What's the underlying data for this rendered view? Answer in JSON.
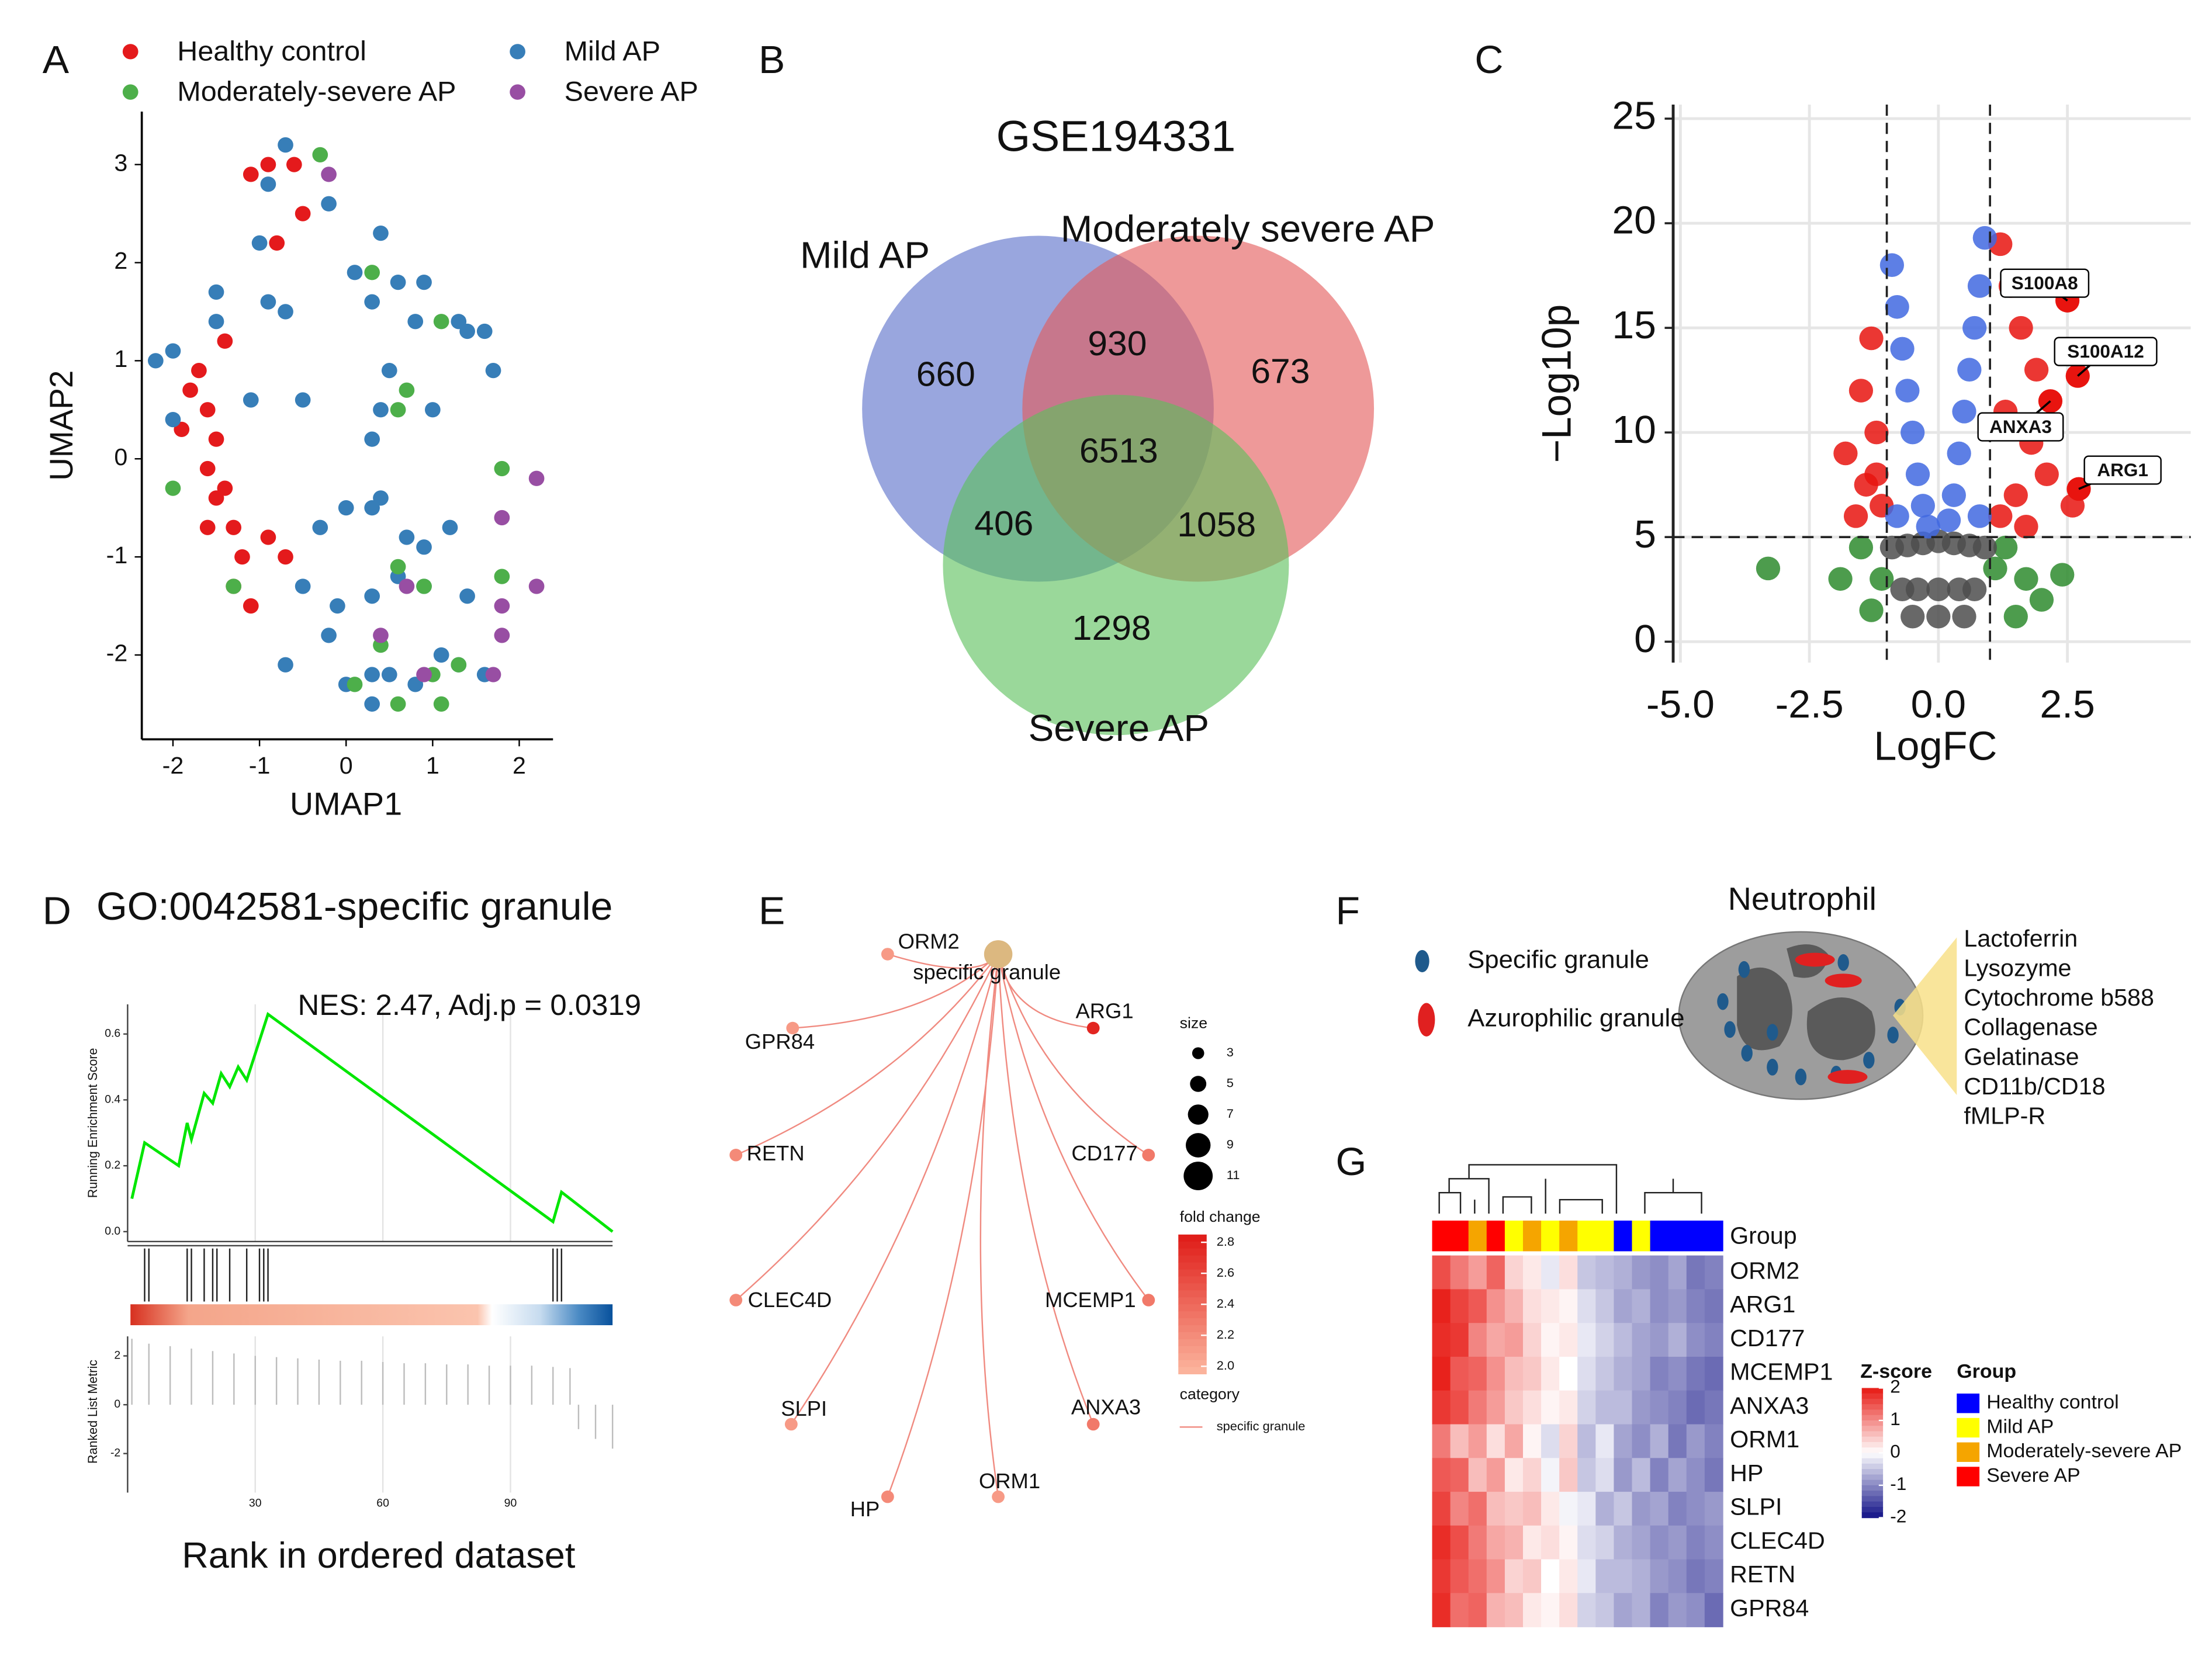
{
  "panels": [
    "A",
    "B",
    "C",
    "D",
    "E",
    "F",
    "G"
  ],
  "chart_data": [
    {
      "type": "scatter",
      "xlabel": "UMAP1",
      "ylabel": "UMAP2",
      "xlim": [
        -2.36,
        2.39
      ],
      "ylim": [
        -2.86,
        3.54
      ],
      "xticks": [
        -2,
        -1,
        0,
        1,
        2
      ],
      "yticks": [
        -2,
        -1,
        0,
        1,
        2,
        3
      ],
      "series": [
        {
          "name": "Healthy control",
          "color": "#e41a1c",
          "x": [
            -0.9,
            -1.1,
            -0.6,
            -0.5,
            -0.8,
            -1.4,
            -1.7,
            -1.8,
            -1.6,
            -1.9,
            -1.5,
            -1.6,
            -1.5,
            -1.3,
            -1.6,
            -1.2,
            -0.9,
            -1.1,
            -1.3,
            -0.7,
            -1.4
          ],
          "y": [
            3.0,
            2.9,
            3.0,
            2.5,
            2.2,
            1.2,
            0.9,
            0.7,
            0.5,
            0.3,
            0.2,
            -0.1,
            -0.4,
            -0.7,
            -0.7,
            -1.0,
            -0.8,
            -1.5,
            -1.3,
            -1.0,
            -0.3
          ]
        },
        {
          "name": "Mild AP",
          "color": "#377eb8",
          "x": [
            -0.7,
            -0.9,
            -0.2,
            -1.0,
            -1.5,
            -1.5,
            -0.7,
            -0.9,
            -2.2,
            -2.0,
            -2.0,
            -1.1,
            -0.5,
            0.1,
            0.4,
            0.6,
            0.3,
            0.9,
            0.8,
            1.3,
            1.4,
            1.6,
            1.7,
            0.5,
            0.4,
            1.0,
            0.3,
            0.4,
            0.3,
            0.0,
            -0.3,
            0.7,
            0.9,
            1.2,
            0.6,
            0.9,
            0.3,
            -0.1,
            -0.2,
            0.3,
            0.5,
            0.0,
            0.3,
            0.8,
            1.1,
            1.3,
            1.4,
            1.6,
            -0.7,
            -0.5
          ],
          "y": [
            3.2,
            2.8,
            2.6,
            2.2,
            1.7,
            1.4,
            1.5,
            1.6,
            1.0,
            1.1,
            0.4,
            0.6,
            0.6,
            1.9,
            2.3,
            1.8,
            1.6,
            1.8,
            1.4,
            1.4,
            1.3,
            1.3,
            0.9,
            0.9,
            0.5,
            0.5,
            0.2,
            -0.4,
            -0.5,
            -0.5,
            -0.7,
            -0.8,
            -0.9,
            -0.7,
            -1.2,
            -1.3,
            -1.4,
            -1.5,
            -1.8,
            -2.2,
            -2.2,
            -2.3,
            -2.5,
            -2.3,
            -2.0,
            -2.1,
            -1.4,
            -2.2,
            -2.1,
            -1.3
          ]
        },
        {
          "name": "Moderately-severe AP",
          "color": "#4daf4a",
          "x": [
            -0.3,
            0.3,
            1.1,
            0.7,
            0.6,
            1.8,
            -2.0,
            0.6,
            0.9,
            1.8,
            -1.3,
            0.4,
            0.6,
            1.0,
            1.3,
            0.1,
            1.1
          ],
          "y": [
            3.1,
            1.9,
            1.4,
            0.7,
            0.5,
            -0.1,
            -0.3,
            -1.1,
            -1.3,
            -1.2,
            -1.3,
            -1.9,
            -2.5,
            -2.2,
            -2.1,
            -2.3,
            -2.5
          ]
        },
        {
          "name": "Severe AP",
          "color": "#984ea3",
          "x": [
            -0.2,
            2.2,
            1.8,
            1.8,
            2.2,
            1.8,
            1.7,
            0.4,
            0.9,
            0.7
          ],
          "y": [
            2.9,
            -0.2,
            -0.6,
            -1.5,
            -1.3,
            -1.8,
            -2.2,
            -1.8,
            -2.2,
            -1.3
          ]
        }
      ]
    },
    {
      "type": "venn",
      "title": "GSE194331",
      "sets": [
        {
          "name": "Mild AP",
          "color": "#5b6fca"
        },
        {
          "name": "Moderately severe AP",
          "color": "#e35b5b"
        },
        {
          "name": "Severe AP",
          "color": "#5cc05c"
        }
      ],
      "regions": {
        "mild": 660,
        "moderately_severe": 673,
        "severe": 1298,
        "mild_moderately_severe": 930,
        "mild_severe": 406,
        "moderately_severe_severe": 1058,
        "all": 6513
      }
    },
    {
      "type": "volcano",
      "xlabel": "LogFC",
      "ylabel": "−Log10p",
      "xlim": [
        -5.14,
        4.89
      ],
      "ylim": [
        -1,
        25.67
      ],
      "xticks": [
        {
          "value": -5,
          "label": "-5.0"
        },
        {
          "value": -2.5,
          "label": "-2.5"
        },
        {
          "value": 0,
          "label": "0.0"
        },
        {
          "value": 2.5,
          "label": "2.5"
        }
      ],
      "yticks": [
        0,
        5,
        10,
        15,
        20,
        25
      ],
      "thresholds": {
        "x": [
          -1,
          1
        ],
        "y": 5
      },
      "grid": true,
      "series": [
        {
          "color": "#2e8b2e",
          "x": [
            -1.5,
            -1.9,
            -1.3,
            -3.3,
            1.3,
            1.7,
            2.0,
            2.4,
            1.5,
            -1.1,
            1.1
          ],
          "y": [
            4.5,
            3,
            1.5,
            3.5,
            4.5,
            3,
            2,
            3.2,
            1.2,
            3,
            3.5
          ]
        },
        {
          "color": "#4d4d4d",
          "x": [
            -0.9,
            -0.6,
            -0.3,
            0,
            0.3,
            0.6,
            0.9,
            -0.7,
            -0.4,
            0,
            0.4,
            0.7,
            -0.5,
            0,
            0.5
          ],
          "y": [
            4.5,
            4.6,
            4.7,
            4.8,
            4.7,
            4.6,
            4.5,
            2.5,
            2.5,
            2.5,
            2.5,
            2.5,
            1.2,
            1.2,
            1.2
          ]
        },
        {
          "color": "#e8140f",
          "x": [
            -1.3,
            -1.5,
            -1.2,
            -1.8,
            -1.4,
            -1.1,
            -1.6,
            -1.2,
            1.2,
            1.4,
            1.6,
            1.9,
            1.3,
            1.8,
            2.1,
            1.5,
            1.2,
            2.6,
            1.7
          ],
          "y": [
            14.5,
            12,
            10,
            9,
            7.5,
            6.5,
            6,
            8,
            19,
            17,
            15,
            13,
            11,
            9.5,
            8,
            7,
            6,
            6.5,
            5.5
          ]
        },
        {
          "color": "#4169e1",
          "x": [
            -0.9,
            -0.8,
            -0.7,
            -0.6,
            -0.5,
            -0.4,
            -0.8,
            -0.3,
            0.9,
            0.8,
            0.7,
            0.6,
            0.5,
            0.4,
            0.8,
            0.3,
            -0.2,
            0.2
          ],
          "y": [
            18,
            16,
            14,
            12,
            10,
            8,
            6,
            6.5,
            19.3,
            17,
            15,
            13,
            11,
            9,
            6,
            7,
            5.5,
            5.8
          ]
        }
      ],
      "labels": [
        {
          "gene": "S100A8",
          "x": 2.5,
          "y": 16.3
        },
        {
          "gene": "S100A12",
          "x": 2.7,
          "y": 12.7
        },
        {
          "gene": "ANXA3",
          "x": 2.17,
          "y": 11.5
        },
        {
          "gene": "ARG1",
          "x": 2.72,
          "y": 7.3
        }
      ]
    },
    {
      "type": "gsea",
      "title": "GO:0042581-specific granule",
      "annotation": "NES: 2.47, Adj.p = 0.0319",
      "xlabel": "Rank in ordered dataset",
      "ylabel": "Running Enrichment Score",
      "metric_label": "Ranked List Metric",
      "color": "#00e600",
      "xlim": [
        0,
        114
      ],
      "xticks": [
        30,
        60,
        90
      ],
      "ylim": [
        -0.03,
        0.69
      ],
      "yticks": [
        {
          "value": 0,
          "label": "0.0"
        },
        0.2,
        0.4,
        0.6
      ],
      "x": [
        1,
        4,
        12,
        14,
        15,
        18,
        20,
        22,
        24,
        26,
        28,
        33,
        100,
        102,
        114
      ],
      "y": [
        0.1,
        0.27,
        0.2,
        0.33,
        0.28,
        0.42,
        0.39,
        0.48,
        0.44,
        0.5,
        0.46,
        0.66,
        0.03,
        0.12,
        0.0
      ],
      "hits": [
        4,
        5,
        14,
        15,
        18,
        20,
        21,
        24,
        28,
        31,
        32,
        33,
        100,
        101,
        102
      ],
      "metric_ylim": [
        -3.6,
        2.8
      ],
      "metric_yticks": [
        -2,
        0,
        2
      ],
      "metric_x": [
        1,
        5,
        10,
        15,
        20,
        25,
        30,
        35,
        40,
        45,
        50,
        55,
        60,
        65,
        70,
        75,
        80,
        85,
        90,
        95,
        100,
        104,
        106,
        110,
        114
      ],
      "metric": [
        2.7,
        2.5,
        2.4,
        2.3,
        2.2,
        2.1,
        2.0,
        1.95,
        1.9,
        1.85,
        1.8,
        1.8,
        1.75,
        1.7,
        1.7,
        1.65,
        1.65,
        1.6,
        1.6,
        1.6,
        1.55,
        1.5,
        -1.0,
        -1.4,
        -1.8
      ]
    },
    {
      "type": "network",
      "center": {
        "label": "specific granule",
        "size": 11,
        "color": "#dcb880"
      },
      "nodes": [
        {
          "label": "ORM2",
          "fold_change": 2.1
        },
        {
          "label": "GPR84",
          "fold_change": 2.1
        },
        {
          "label": "RETN",
          "fold_change": 2.2
        },
        {
          "label": "CLEC4D",
          "fold_change": 2.2
        },
        {
          "label": "SLPI",
          "fold_change": 2.1
        },
        {
          "label": "HP",
          "fold_change": 2.2
        },
        {
          "label": "ORM1",
          "fold_change": 2.1
        },
        {
          "label": "ANXA3",
          "fold_change": 2.3
        },
        {
          "label": "MCEMP1",
          "fold_change": 2.3
        },
        {
          "label": "CD177",
          "fold_change": 2.3
        },
        {
          "label": "ARG1",
          "fold_change": 2.8
        }
      ],
      "node_size": 3,
      "edge_color": "#f08a80",
      "size_title": "size",
      "size_ticks": [
        3,
        5,
        7,
        9,
        11
      ],
      "color_title": "fold change",
      "color_lim": [
        1.95,
        2.85
      ],
      "low_color": "#fbb39c",
      "high_color": "#e01e1a",
      "color_ticks": [
        {
          "value": 2,
          "label": "2.0"
        },
        2.2,
        2.4,
        2.6,
        2.8
      ],
      "category_title": "category",
      "category": "specific granule"
    },
    {
      "type": "heatmap",
      "rows": [
        "ORM2",
        "ARG1",
        "CD177",
        "MCEMP1",
        "ANXA3",
        "ORM1",
        "HP",
        "SLPI",
        "CLEC4D",
        "RETN",
        "GPR84"
      ],
      "group_title": "Group",
      "groups": [
        {
          "name": "Healthy control",
          "color": "#0000ff"
        },
        {
          "name": "Mild AP",
          "color": "#ffff00"
        },
        {
          "name": "Moderately-severe AP",
          "color": "#f5a500"
        },
        {
          "name": "Severe AP",
          "color": "#ff0000"
        }
      ],
      "column_groups": [
        3,
        3,
        2,
        3,
        1,
        2,
        1,
        2,
        1,
        1,
        0,
        1,
        0,
        0,
        0,
        0
      ],
      "values": [
        [
          1.6,
          1.2,
          0.9,
          1.4,
          0.4,
          0.2,
          -0.2,
          0.3,
          -0.5,
          -0.6,
          -0.7,
          -0.9,
          -1.0,
          -0.8,
          -1.2,
          -1.1
        ],
        [
          2,
          1.7,
          1.5,
          1.0,
          0.7,
          0.3,
          0.2,
          0.1,
          -0.3,
          -0.5,
          -0.8,
          -0.7,
          -1.0,
          -0.9,
          -1.1,
          -1.2
        ],
        [
          1.9,
          1.8,
          1.1,
          0.8,
          0.9,
          0.4,
          0.1,
          0.2,
          -0.2,
          -0.4,
          -0.6,
          -0.8,
          -0.9,
          -0.7,
          -1.0,
          -1.1
        ],
        [
          2,
          1.5,
          1.4,
          1.0,
          0.6,
          0.5,
          0.2,
          0.0,
          -0.3,
          -0.5,
          -0.7,
          -0.8,
          -1.1,
          -1.0,
          -1.2,
          -1.3
        ],
        [
          1.8,
          1.6,
          1.2,
          0.9,
          0.5,
          0.3,
          0.1,
          0.2,
          -0.4,
          -0.6,
          -0.6,
          -0.9,
          -1.0,
          -1.1,
          -1.3,
          -1.2
        ],
        [
          1.2,
          0.6,
          0.9,
          0.3,
          0.8,
          0.1,
          -0.3,
          0.4,
          -0.6,
          -0.2,
          -0.8,
          -1.0,
          -0.7,
          -1.2,
          -0.9,
          -1.1
        ],
        [
          1.5,
          1.4,
          0.6,
          0.9,
          0.2,
          0.4,
          -0.1,
          0.5,
          -0.5,
          -0.3,
          -0.9,
          -0.6,
          -1.1,
          -0.8,
          -1.0,
          -1.2
        ],
        [
          1.7,
          1.1,
          1.3,
          0.6,
          0.5,
          0.6,
          0.2,
          -0.1,
          -0.2,
          -0.7,
          -0.5,
          -0.9,
          -0.8,
          -1.1,
          -1.0,
          -0.9
        ],
        [
          1.9,
          1.6,
          1.2,
          0.8,
          0.7,
          0.2,
          0.3,
          0.1,
          -0.3,
          -0.4,
          -0.7,
          -0.8,
          -1.0,
          -0.9,
          -1.1,
          -1.0
        ],
        [
          1.8,
          1.5,
          1.3,
          1.0,
          0.4,
          0.5,
          0.0,
          0.2,
          -0.2,
          -0.6,
          -0.6,
          -0.7,
          -0.9,
          -1.0,
          -1.2,
          -1.1
        ],
        [
          1.9,
          1.3,
          1.4,
          0.7,
          0.6,
          0.2,
          0.1,
          0.3,
          -0.4,
          -0.5,
          -0.8,
          -0.7,
          -1.1,
          -0.9,
          -1.0,
          -1.3
        ]
      ],
      "zlim": [
        -2,
        2
      ],
      "zticks": [
        2,
        1,
        0,
        -1,
        -2
      ],
      "low_color": "#1c1c8c",
      "mid_color": "#ffffff",
      "high_color": "#e8221c",
      "colorbar_title": "Z-score"
    }
  ],
  "diagram": {
    "title": "Neutrophil",
    "legend": [
      "Specific granule",
      "Azurophilic granule"
    ],
    "contents": [
      "Lactoferrin",
      "Lysozyme",
      "Cytochrome b588",
      "Collagenase",
      "Gelatinase",
      "CD11b/CD18",
      "fMLP-R"
    ]
  }
}
